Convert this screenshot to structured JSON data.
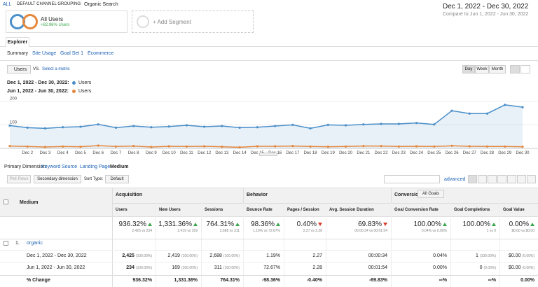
{
  "header": {
    "breadcrumb_root": "ALL",
    "breadcrumb": "DEFAULT CHANNEL GROUPING:",
    "breadcrumb_value": "Organic Search",
    "date_range": "Dec 1, 2022 - Dec 30, 2022",
    "compare_label": "Compare to:",
    "compare_range": "Jun 1, 2022 - Jun 30, 2022"
  },
  "segments": [
    {
      "name": "All Users",
      "detail": "+82.96% Users"
    },
    {
      "name": "+ Add Segment"
    }
  ],
  "tabs": [
    "Explorer"
  ],
  "subtabs": [
    "Summary",
    "Site Usage",
    "Goal Set 1",
    "Ecommerce"
  ],
  "controls": {
    "metric": "Users",
    "vs": "VS.",
    "select": "Select a metric",
    "periods": [
      "Day",
      "Week",
      "Month"
    ]
  },
  "chart_data": {
    "type": "line",
    "categories": [
      null,
      "Dec 2",
      "Dec 3",
      "Dec 4",
      "Dec 5",
      "Dec 6",
      "Dec 7",
      "Dec 8",
      "Dec 9",
      "Dec 10",
      "Dec 11",
      "Dec 12",
      "Dec 13",
      "Dec 14",
      "Dec 15",
      "Dec 16",
      "Dec 17",
      "Dec 18",
      "Dec 19",
      "Dec 20",
      "Dec 21",
      "Dec 22",
      "Dec 23",
      "Dec 24",
      "Dec 25",
      "Dec 26",
      "Dec 27",
      "Dec 28",
      "Dec 29",
      "Dec 30"
    ],
    "series": [
      {
        "name": "Users",
        "period": "Dec 1, 2022 - Dec 30, 2022:",
        "color": "#4a8fc9",
        "values": [
          97,
          88,
          85,
          90,
          92,
          102,
          88,
          95,
          90,
          93,
          98,
          92,
          95,
          88,
          90,
          95,
          100,
          85,
          100,
          98,
          102,
          104,
          104,
          108,
          102,
          160,
          148,
          148,
          185,
          175
        ]
      },
      {
        "name": "Users",
        "period": "Jun 1, 2022 - Jun 30, 2022:",
        "color": "#e5873b",
        "values": [
          10,
          8,
          6,
          8,
          7,
          12,
          8,
          10,
          6,
          9,
          8,
          9,
          7,
          5,
          9,
          9,
          10,
          8,
          7,
          8,
          10,
          10,
          8,
          9,
          8,
          11,
          9,
          8,
          8,
          7
        ]
      }
    ],
    "ylim": [
      0,
      220
    ],
    "yticks": [
      100,
      200
    ],
    "grid": true
  },
  "table_controls": {
    "primary_label": "Primary Dimension:",
    "dimensions": [
      "Keyword",
      "Source",
      "Landing Page",
      "Medium"
    ],
    "plot_rows": "Plot Rows",
    "secondary": "Secondary dimension",
    "sort_label": "Sort Type:",
    "sort": "Default",
    "advanced": "advanced"
  },
  "table": {
    "groups": [
      "Acquisition",
      "Behavior",
      "Conversions"
    ],
    "goals": "All Goals",
    "columns": [
      "Medium",
      "Users",
      "New Users",
      "Sessions",
      "Bounce Rate",
      "Pages / Session",
      "Avg. Session Duration",
      "Goal Conversion Rate",
      "Goal Completions",
      "Goal Value"
    ],
    "totals": [
      {
        "value": "936.32%",
        "detail": "2,425 vs 234"
      },
      {
        "value": "1,331.36%",
        "detail": "2,419 vs 169"
      },
      {
        "value": "764.31%",
        "detail": "2,688 vs 311"
      },
      {
        "value": "98.36%",
        "detail": "1.19% vs 72.67%"
      },
      {
        "value": "0.40%",
        "detail": "2.27 vs 2.28"
      },
      {
        "value": "69.83%",
        "detail": "00:00:34 vs 00:01:54"
      },
      {
        "value": "100.00%",
        "detail": "0.04% vs 0.00%"
      },
      {
        "value": "100.00%",
        "detail": "1 vs 0"
      },
      {
        "value": "0.00%",
        "detail": "$0.00 vs $0.00"
      }
    ],
    "row": {
      "index": "1.",
      "label": "organic"
    },
    "comparison": [
      {
        "label": "Dec 1, 2022 - Dec 30, 2022",
        "cells": [
          {
            "value": "2,425",
            "share": "(100.00%)"
          },
          {
            "value": "2,419",
            "share": "(100.00%)"
          },
          {
            "value": "2,688",
            "share": "(100.00%)"
          },
          {
            "value": "1.19%"
          },
          {
            "value": "2.27"
          },
          {
            "value": "00:00:34"
          },
          {
            "value": "0.04%"
          },
          {
            "value": "1",
            "share": "(100.00%)"
          },
          {
            "value": "$0.00",
            "share": "(0.00%)"
          }
        ]
      },
      {
        "label": "Jun 1, 2022 - Jun 30, 2022",
        "cells": [
          {
            "value": "234",
            "share": "(100.00%)"
          },
          {
            "value": "169",
            "share": "(100.00%)"
          },
          {
            "value": "311",
            "share": "(100.00%)"
          },
          {
            "value": "72.67%"
          },
          {
            "value": "2.28"
          },
          {
            "value": "00:01:54"
          },
          {
            "value": "0.00%"
          },
          {
            "value": "0",
            "share": "(0.00%)"
          },
          {
            "value": "$0.00",
            "share": "(0.00%)"
          }
        ]
      }
    ],
    "change": {
      "label": "% Change",
      "cells": [
        "936.32%",
        "1,331.36%",
        "764.31%",
        "-98.36%",
        "-0.40%",
        "-69.83%",
        "∞%",
        "∞%",
        "0.00%"
      ]
    }
  }
}
